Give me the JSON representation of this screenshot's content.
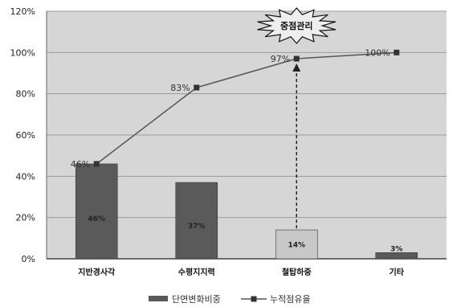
{
  "chart_data": {
    "type": "bar",
    "categories": [
      "지반경사각",
      "수평지지력",
      "철탑하중",
      "기타"
    ],
    "series": [
      {
        "name": "단면변화비중",
        "kind": "bar",
        "values": [
          46,
          37,
          14,
          3
        ],
        "labels": [
          "46%",
          "37%",
          "14%",
          "3%"
        ],
        "color": "#5a5a5a"
      },
      {
        "name": "누적점유율",
        "kind": "line",
        "values": [
          46,
          83,
          97,
          100
        ],
        "labels": [
          "46%",
          "83%",
          "97%",
          "100%"
        ],
        "color": "#555555"
      }
    ],
    "ylim": [
      0,
      120
    ],
    "yticks": [
      "0%",
      "20%",
      "40%",
      "60%",
      "80%",
      "100%",
      "120%"
    ],
    "grid": true,
    "legend_position": "bottom",
    "annotation": "중점관리",
    "colors": {
      "plot_bg": "#d6d6d6",
      "highlight_bar": "#c8c8c8",
      "burst": "#eeeeee"
    }
  }
}
